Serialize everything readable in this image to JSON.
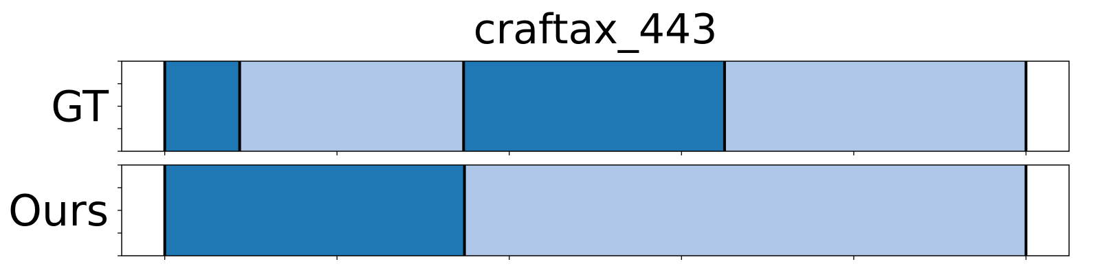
{
  "chart_data": {
    "type": "segmentation-timeline",
    "title": "craftax_443",
    "xlim": [
      -50,
      1050
    ],
    "x_ticks": [
      0,
      200,
      400,
      600,
      800,
      1000
    ],
    "x_tick_labels_shown": false,
    "y_tick_labels_shown": false,
    "grid": false,
    "legend": "none",
    "colors": {
      "dark": "#1f77b4",
      "light": "#aec7e8",
      "boundary": "#000000",
      "frame": "#000000"
    },
    "rows": [
      {
        "label": "GT",
        "segments": [
          {
            "start": 0,
            "end": 87,
            "color": "dark"
          },
          {
            "start": 87,
            "end": 347,
            "color": "light"
          },
          {
            "start": 347,
            "end": 650,
            "color": "dark"
          },
          {
            "start": 650,
            "end": 1000,
            "color": "light"
          }
        ],
        "boundaries": [
          0,
          87,
          347,
          650,
          1000
        ]
      },
      {
        "label": "Ours",
        "segments": [
          {
            "start": 0,
            "end": 348,
            "color": "dark"
          },
          {
            "start": 348,
            "end": 1000,
            "color": "light"
          }
        ],
        "boundaries": [
          0,
          348,
          1000
        ]
      }
    ]
  }
}
